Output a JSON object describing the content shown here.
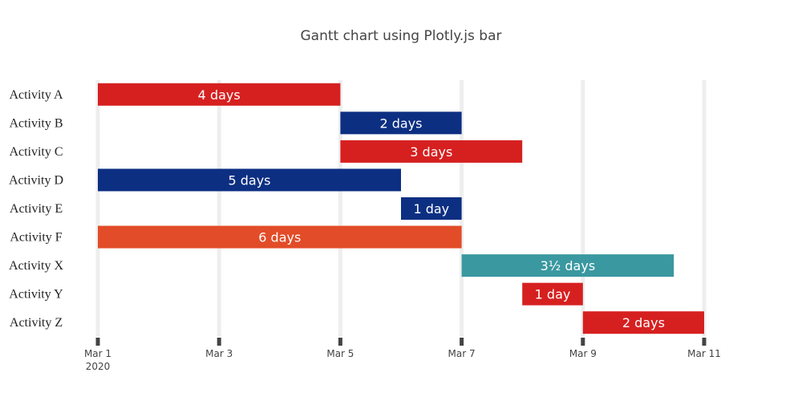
{
  "chart_data": {
    "type": "bar",
    "orientation": "horizontal",
    "title": "Gantt chart using Plotly.js bar",
    "x_axis": {
      "type": "date",
      "range": [
        "2020-03-01",
        "2020-03-11"
      ],
      "tick_labels": [
        "Mar 1",
        "Mar 3",
        "Mar 5",
        "Mar 7",
        "Mar 9",
        "Mar 11"
      ],
      "tick_values": [
        "2020-03-01",
        "2020-03-03",
        "2020-03-05",
        "2020-03-07",
        "2020-03-09",
        "2020-03-11"
      ],
      "year_label": "2020"
    },
    "grid": true,
    "categories": [
      "Activity A",
      "Activity B",
      "Activity C",
      "Activity D",
      "Activity E",
      "Activity F",
      "Activity X",
      "Activity Y",
      "Activity Z"
    ],
    "bars": [
      {
        "category": "Activity A",
        "start": "2020-03-01",
        "end": "2020-03-05",
        "label": "4 days",
        "color": "#d62020"
      },
      {
        "category": "Activity B",
        "start": "2020-03-05",
        "end": "2020-03-07",
        "label": "2 days",
        "color": "#0d2f82"
      },
      {
        "category": "Activity C",
        "start": "2020-03-05",
        "end": "2020-03-08",
        "label": "3 days",
        "color": "#d62020"
      },
      {
        "category": "Activity D",
        "start": "2020-03-01",
        "end": "2020-03-06",
        "label": "5 days",
        "color": "#0d2f82"
      },
      {
        "category": "Activity E",
        "start": "2020-03-06",
        "end": "2020-03-07",
        "label": "1 day",
        "color": "#0d2f82"
      },
      {
        "category": "Activity F",
        "start": "2020-03-01",
        "end": "2020-03-07",
        "label": "6 days",
        "color": "#e24c28"
      },
      {
        "category": "Activity X",
        "start": "2020-03-07",
        "end": "2020-03-10T12:00",
        "label": "3½ days",
        "color": "#3a98a0"
      },
      {
        "category": "Activity Y",
        "start": "2020-03-08",
        "end": "2020-03-09",
        "label": "1 day",
        "color": "#d62020"
      },
      {
        "category": "Activity Z",
        "start": "2020-03-09",
        "end": "2020-03-11",
        "label": "2 days",
        "color": "#d62020"
      }
    ],
    "colors": {
      "gridline": "#eeeeee",
      "tick_mark": "#444444"
    }
  }
}
